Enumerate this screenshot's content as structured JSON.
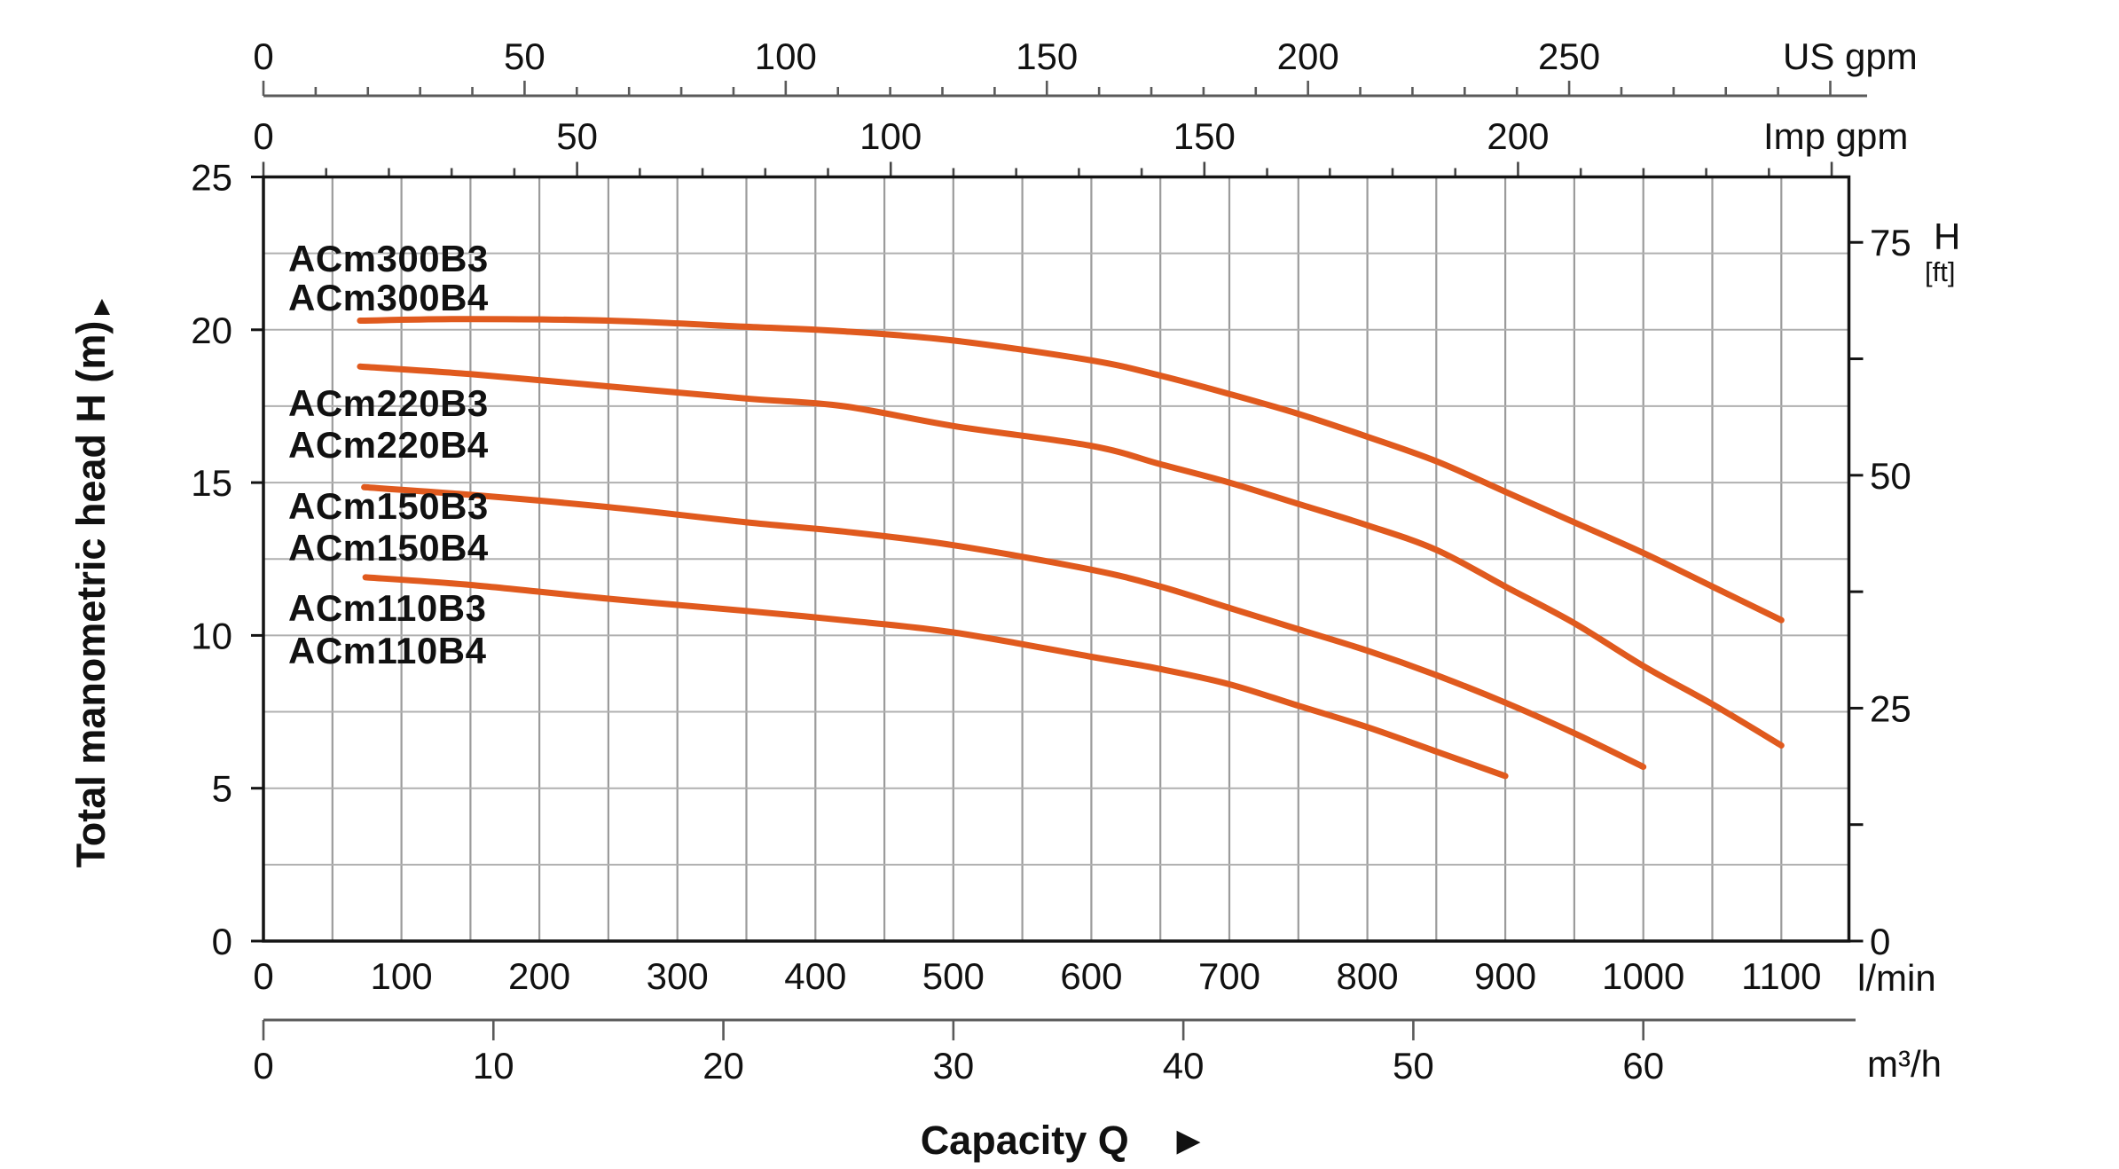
{
  "chart_data": {
    "type": "line",
    "title": "",
    "xlabel": "Capacity Q",
    "ylabel": "Total manometric head H (m)",
    "grid": true,
    "curve_color": "#e05a1e",
    "x_axes": [
      {
        "unit": "US gpm",
        "labels": [
          0,
          50,
          100,
          150,
          200,
          250
        ],
        "tick_step": 10,
        "tick_max": 300,
        "lmin_per_unit": 3.785
      },
      {
        "unit": "Imp gpm",
        "labels": [
          0,
          50,
          100,
          150,
          200
        ],
        "tick_step": 10,
        "tick_max": 250,
        "lmin_per_unit": 4.546
      },
      {
        "unit": "l/min",
        "labels": [
          0,
          100,
          200,
          300,
          400,
          500,
          600,
          700,
          800,
          900,
          1000,
          1100
        ],
        "lmin_per_unit": 1
      },
      {
        "unit": "m³/h",
        "labels": [
          0,
          10,
          20,
          30,
          40,
          50,
          60
        ],
        "tick_step": 10,
        "tick_max": 60,
        "lmin_per_unit": 16.6667
      }
    ],
    "y_axes": [
      {
        "unit": "m",
        "labels": [
          0,
          5,
          10,
          15,
          20,
          25
        ],
        "range": [
          0,
          25
        ],
        "grid_step": 2.5
      },
      {
        "unit_title": "H",
        "unit_sub": "[ft]",
        "labels": [
          0,
          25,
          50,
          75
        ],
        "tick_step": 12.5,
        "m_per_ft": 0.3048
      }
    ],
    "series": [
      {
        "name": "ACm300B3 / ACm300B4",
        "label_lines": [
          "ACm300B3",
          "ACm300B4"
        ],
        "points_lmin_m": [
          [
            70,
            20.3
          ],
          [
            150,
            20.35
          ],
          [
            250,
            20.3
          ],
          [
            350,
            20.1
          ],
          [
            420,
            19.95
          ],
          [
            500,
            19.65
          ],
          [
            600,
            19.0
          ],
          [
            650,
            18.5
          ],
          [
            700,
            17.9
          ],
          [
            750,
            17.25
          ],
          [
            800,
            16.5
          ],
          [
            850,
            15.7
          ],
          [
            900,
            14.7
          ],
          [
            950,
            13.7
          ],
          [
            1000,
            12.7
          ],
          [
            1050,
            11.6
          ],
          [
            1100,
            10.5
          ]
        ]
      },
      {
        "name": "ACm220B3 / ACm220B4",
        "label_lines": [
          "ACm220B3",
          "ACm220B4"
        ],
        "points_lmin_m": [
          [
            70,
            18.8
          ],
          [
            150,
            18.55
          ],
          [
            250,
            18.15
          ],
          [
            350,
            17.75
          ],
          [
            420,
            17.5
          ],
          [
            500,
            16.85
          ],
          [
            600,
            16.2
          ],
          [
            650,
            15.6
          ],
          [
            700,
            15.0
          ],
          [
            750,
            14.3
          ],
          [
            800,
            13.6
          ],
          [
            850,
            12.8
          ],
          [
            900,
            11.6
          ],
          [
            950,
            10.4
          ],
          [
            1000,
            9.0
          ],
          [
            1050,
            7.75
          ],
          [
            1100,
            6.4
          ]
        ]
      },
      {
        "name": "ACm150B3 / ACm150B4",
        "label_lines": [
          "ACm150B3",
          "ACm150B4"
        ],
        "points_lmin_m": [
          [
            73,
            14.85
          ],
          [
            150,
            14.6
          ],
          [
            250,
            14.2
          ],
          [
            350,
            13.7
          ],
          [
            420,
            13.4
          ],
          [
            500,
            12.95
          ],
          [
            600,
            12.15
          ],
          [
            650,
            11.6
          ],
          [
            700,
            10.9
          ],
          [
            750,
            10.2
          ],
          [
            800,
            9.5
          ],
          [
            850,
            8.7
          ],
          [
            900,
            7.8
          ],
          [
            950,
            6.8
          ],
          [
            1000,
            5.7
          ]
        ]
      },
      {
        "name": "ACm110B3 / ACm110B4",
        "label_lines": [
          "ACm110B3",
          "ACm110B4"
        ],
        "points_lmin_m": [
          [
            74,
            11.9
          ],
          [
            150,
            11.65
          ],
          [
            250,
            11.2
          ],
          [
            350,
            10.8
          ],
          [
            420,
            10.5
          ],
          [
            500,
            10.1
          ],
          [
            600,
            9.3
          ],
          [
            650,
            8.9
          ],
          [
            700,
            8.4
          ],
          [
            750,
            7.7
          ],
          [
            800,
            7.0
          ],
          [
            850,
            6.2
          ],
          [
            900,
            5.4
          ]
        ]
      }
    ]
  },
  "icons": {
    "up_arrow": "▲",
    "right_arrow": "►"
  }
}
